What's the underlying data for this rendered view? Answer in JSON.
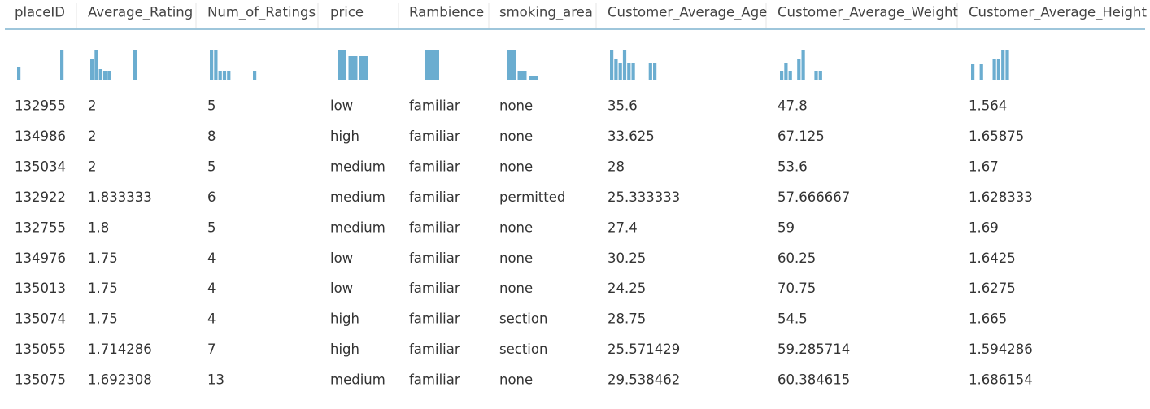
{
  "table": {
    "columns": [
      "placeID",
      "Average_Rating",
      "Num_of_Ratings",
      "price",
      "Rambience",
      "smoking_area",
      "Customer_Average_Age",
      "Customer_Average_Weight",
      "Customer_Average_Height"
    ],
    "histograms": [
      [
        17,
        0,
        0,
        0,
        0,
        0,
        0,
        0,
        0,
        0,
        37
      ],
      [
        27,
        37,
        14,
        12,
        12,
        0,
        0,
        0,
        0,
        0,
        37
      ],
      [
        37,
        37,
        12,
        12,
        12,
        0,
        0,
        0,
        0,
        0,
        12
      ],
      [
        37,
        30,
        30
      ],
      [
        37
      ],
      [
        37,
        12,
        5
      ],
      [
        37,
        26,
        22,
        37,
        22,
        22,
        0,
        0,
        0,
        22,
        22
      ],
      [
        12,
        22,
        12,
        0,
        27,
        37,
        0,
        0,
        12,
        12
      ],
      [
        20,
        0,
        20,
        0,
        0,
        26,
        26,
        37,
        37
      ]
    ],
    "rows": [
      [
        "132955",
        "2",
        "5",
        "low",
        "familiar",
        "none",
        "35.6",
        "47.8",
        "1.564"
      ],
      [
        "134986",
        "2",
        "8",
        "high",
        "familiar",
        "none",
        "33.625",
        "67.125",
        "1.65875"
      ],
      [
        "135034",
        "2",
        "5",
        "medium",
        "familiar",
        "none",
        "28",
        "53.6",
        "1.67"
      ],
      [
        "132922",
        "1.833333",
        "6",
        "medium",
        "familiar",
        "permitted",
        "25.333333",
        "57.666667",
        "1.628333"
      ],
      [
        "132755",
        "1.8",
        "5",
        "medium",
        "familiar",
        "none",
        "27.4",
        "59",
        "1.69"
      ],
      [
        "134976",
        "1.75",
        "4",
        "low",
        "familiar",
        "none",
        "30.25",
        "60.25",
        "1.6425"
      ],
      [
        "135013",
        "1.75",
        "4",
        "low",
        "familiar",
        "none",
        "24.25",
        "70.75",
        "1.6275"
      ],
      [
        "135074",
        "1.75",
        "4",
        "high",
        "familiar",
        "section",
        "28.75",
        "54.5",
        "1.665"
      ],
      [
        "135055",
        "1.714286",
        "7",
        "high",
        "familiar",
        "section",
        "25.571429",
        "59.285714",
        "1.594286"
      ],
      [
        "135075",
        "1.692308",
        "13",
        "medium",
        "familiar",
        "none",
        "29.538462",
        "60.384615",
        "1.686154"
      ]
    ]
  }
}
